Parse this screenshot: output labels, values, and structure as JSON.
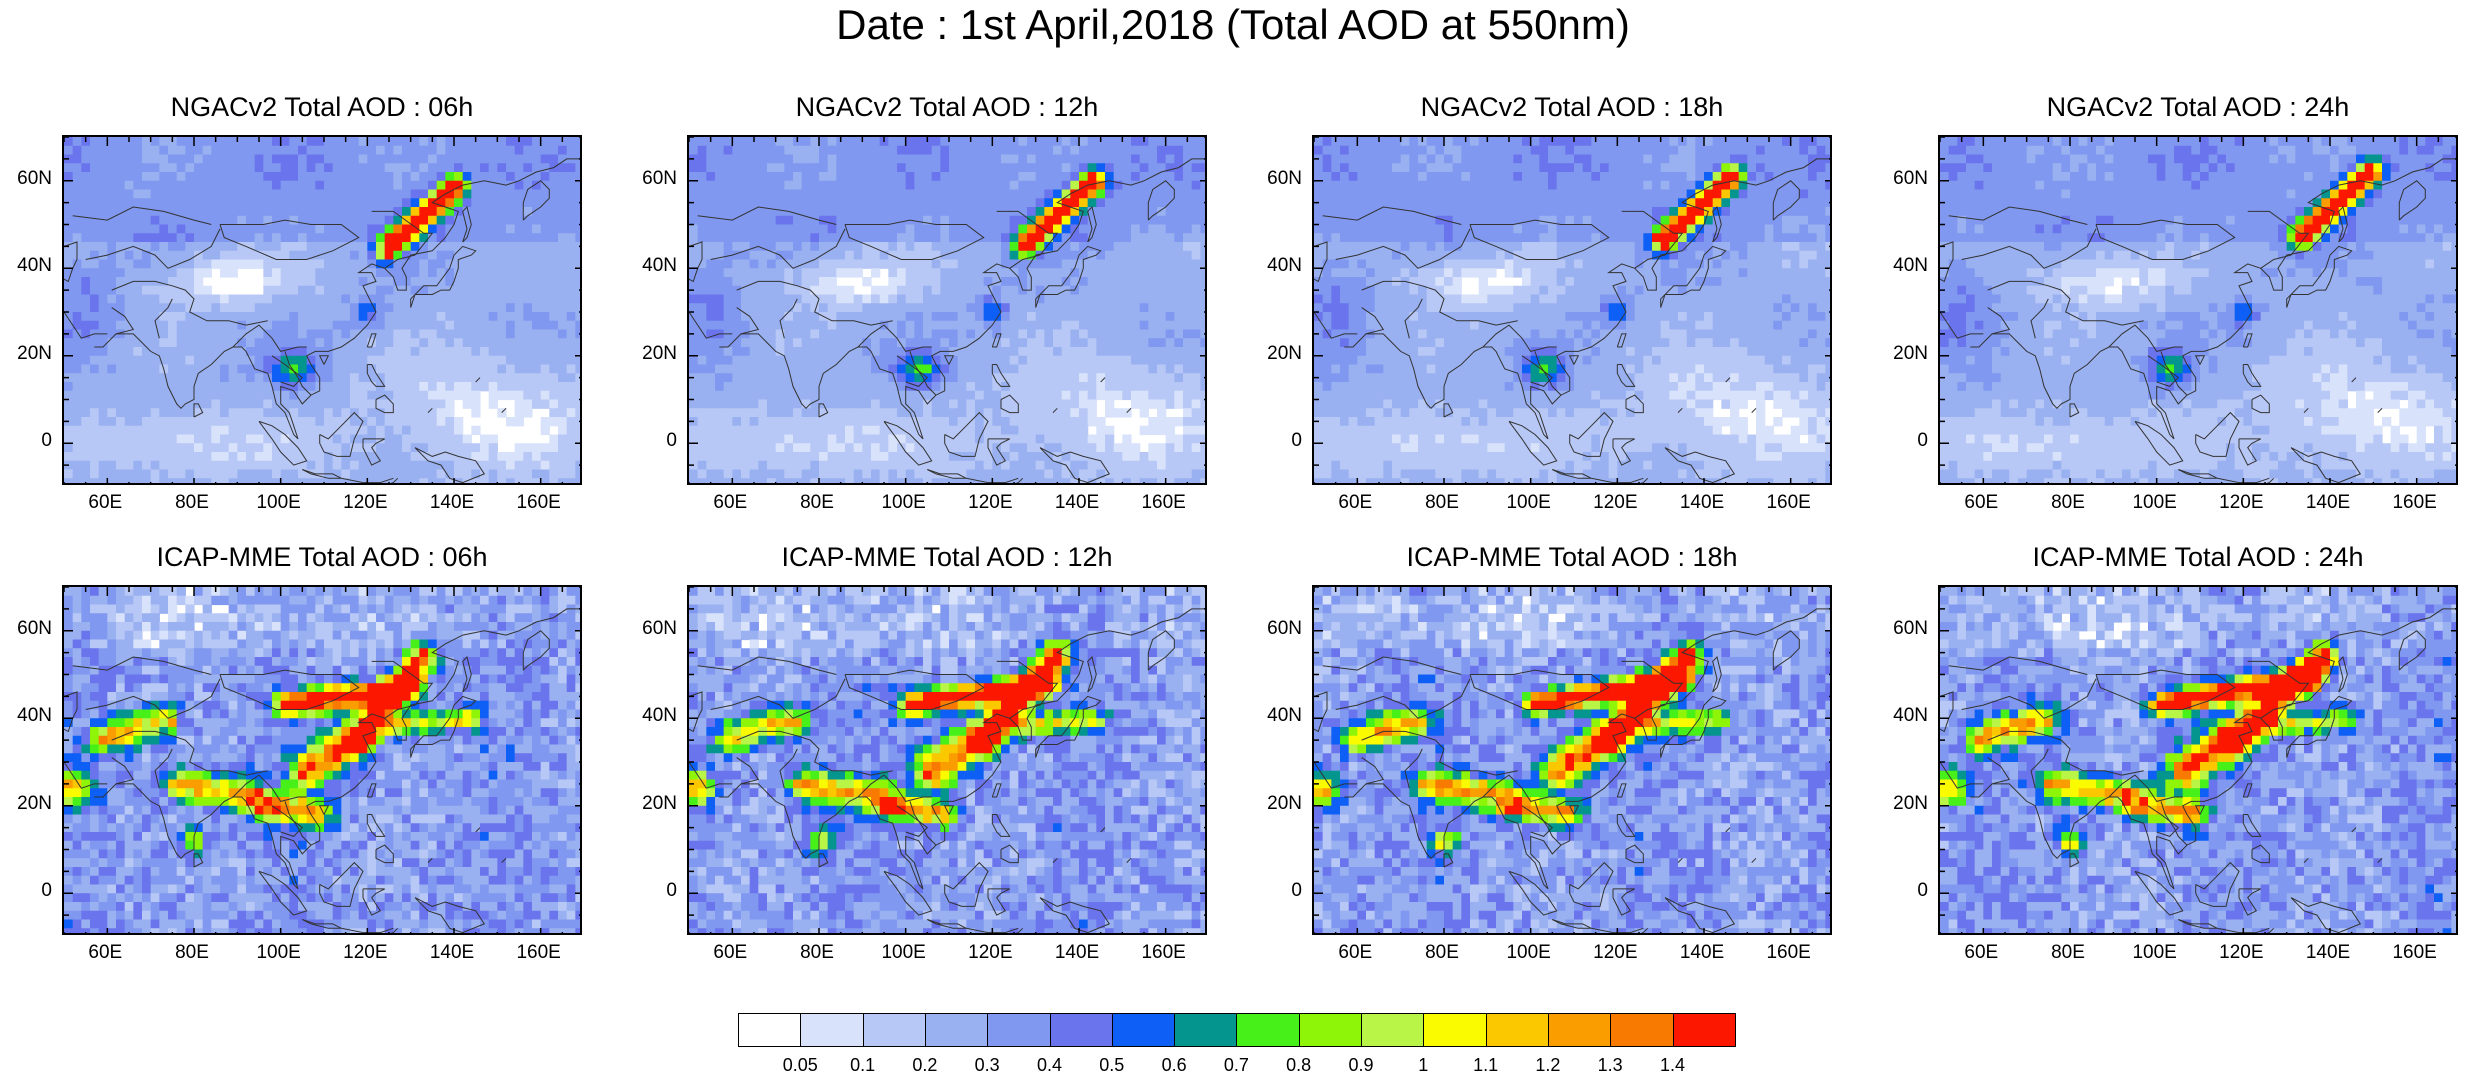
{
  "title": "Date : 1st April,2018 (Total AOD at 550nm)",
  "lat_ticks": [
    "60N",
    "40N",
    "20N",
    "0"
  ],
  "lon_ticks": [
    "60E",
    "80E",
    "100E",
    "120E",
    "140E",
    "160E"
  ],
  "panels": [
    {
      "id": "ngac-06",
      "title": "NGACv2 Total AOD : 06h",
      "model": "NGACv2",
      "hour": 6
    },
    {
      "id": "ngac-12",
      "title": "NGACv2 Total AOD : 12h",
      "model": "NGACv2",
      "hour": 12
    },
    {
      "id": "ngac-18",
      "title": "NGACv2 Total AOD : 18h",
      "model": "NGACv2",
      "hour": 18
    },
    {
      "id": "ngac-24",
      "title": "NGACv2 Total AOD : 24h",
      "model": "NGACv2",
      "hour": 24
    },
    {
      "id": "icap-06",
      "title": "ICAP-MME Total AOD : 06h",
      "model": "ICAP-MME",
      "hour": 6
    },
    {
      "id": "icap-12",
      "title": "ICAP-MME Total AOD : 12h",
      "model": "ICAP-MME",
      "hour": 12
    },
    {
      "id": "icap-18",
      "title": "ICAP-MME Total AOD : 18h",
      "model": "ICAP-MME",
      "hour": 18
    },
    {
      "id": "icap-24",
      "title": "ICAP-MME Total AOD : 24h",
      "model": "ICAP-MME",
      "hour": 24
    }
  ],
  "colorbar": {
    "colors": [
      "#ffffff",
      "#d8e2fb",
      "#b8c8f6",
      "#9ab1f1",
      "#8098ef",
      "#6a74ec",
      "#0d5ff5",
      "#04958f",
      "#46f018",
      "#8ff508",
      "#b9f546",
      "#fbfb00",
      "#fbc800",
      "#f99d00",
      "#f97a00",
      "#fb1700"
    ],
    "labels": [
      "0.05",
      "0.1",
      "0.2",
      "0.3",
      "0.4",
      "0.5",
      "0.6",
      "0.7",
      "0.8",
      "0.9",
      "1",
      "1.1",
      "1.2",
      "1.3",
      "1.4"
    ]
  },
  "map_extent": {
    "lon": [
      50,
      170
    ],
    "lat": [
      -10,
      70
    ]
  }
}
